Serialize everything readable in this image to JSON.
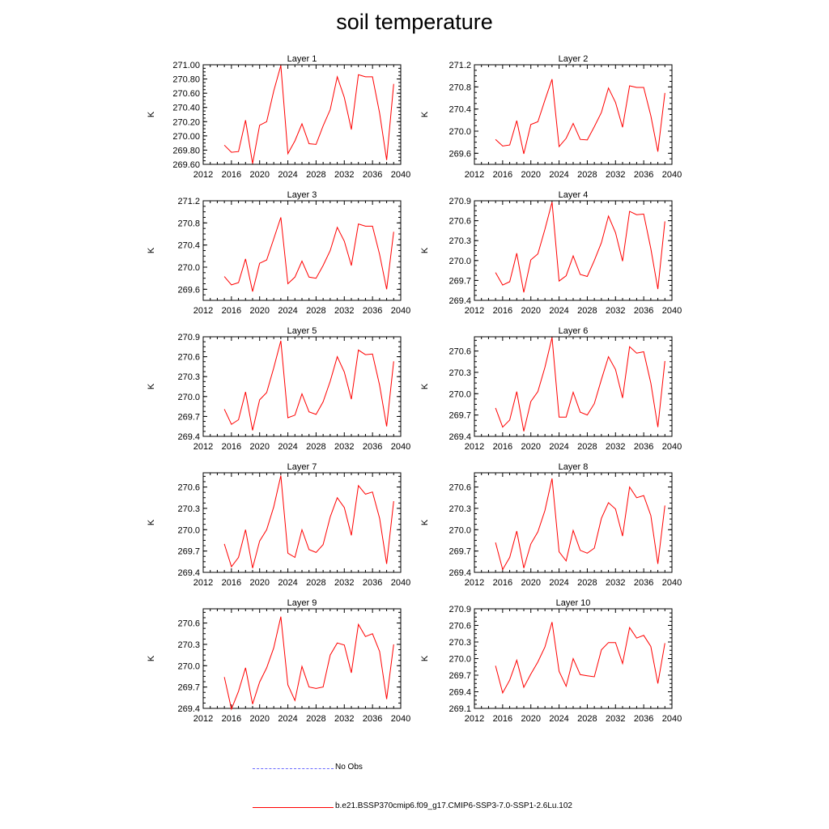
{
  "figure": {
    "title": "soil temperature",
    "legend": [
      {
        "label": "No Obs",
        "color": "#0000ff",
        "style": "dashed"
      },
      {
        "label": "b.e21.BSSP370cmip6.f09_g17.CMIP6-SSP3-7.0-SSP1-2.6Lu.102",
        "color": "#ff0000",
        "style": "solid"
      }
    ]
  },
  "chart_data": [
    {
      "type": "line",
      "title": "Layer 1",
      "ylabel": "K",
      "color": "#ff0000",
      "xlim": [
        2012,
        2040
      ],
      "xticks": [
        2012,
        2016,
        2020,
        2024,
        2028,
        2032,
        2036,
        2040
      ],
      "ylim": [
        269.6,
        271.0
      ],
      "yticks": [
        "269.60",
        "269.80",
        "270.00",
        "270.20",
        "270.40",
        "270.60",
        "270.80",
        "271.00"
      ],
      "x": [
        2015,
        2016,
        2017,
        2018,
        2019,
        2020,
        2021,
        2022,
        2023,
        2024,
        2025,
        2026,
        2027,
        2028,
        2029,
        2030,
        2031,
        2032,
        2033,
        2034,
        2035,
        2036,
        2037,
        2038,
        2039
      ],
      "values": [
        269.87,
        269.77,
        269.78,
        270.22,
        269.61,
        270.15,
        270.2,
        270.63,
        270.99,
        269.75,
        269.93,
        270.17,
        269.89,
        269.88,
        270.14,
        270.37,
        270.83,
        270.54,
        270.09,
        270.86,
        270.83,
        270.83,
        270.32,
        269.66,
        270.73
      ]
    },
    {
      "type": "line",
      "title": "Layer 2",
      "ylabel": "K",
      "color": "#ff0000",
      "xlim": [
        2012,
        2040
      ],
      "xticks": [
        2012,
        2016,
        2020,
        2024,
        2028,
        2032,
        2036,
        2040
      ],
      "ylim": [
        269.4,
        271.2
      ],
      "yticks": [
        "269.6",
        "270.0",
        "270.4",
        "270.8",
        "271.2"
      ],
      "x": [
        2015,
        2016,
        2017,
        2018,
        2019,
        2020,
        2021,
        2022,
        2023,
        2024,
        2025,
        2026,
        2027,
        2028,
        2029,
        2030,
        2031,
        2032,
        2033,
        2034,
        2035,
        2036,
        2037,
        2038,
        2039
      ],
      "values": [
        269.85,
        269.73,
        269.75,
        270.19,
        269.59,
        270.12,
        270.17,
        270.56,
        270.94,
        269.72,
        269.87,
        270.14,
        269.85,
        269.84,
        270.08,
        270.34,
        270.78,
        270.52,
        270.07,
        270.82,
        270.79,
        270.79,
        270.28,
        269.63,
        270.69
      ]
    },
    {
      "type": "line",
      "title": "Layer 3",
      "ylabel": "K",
      "color": "#ff0000",
      "xlim": [
        2012,
        2040
      ],
      "xticks": [
        2012,
        2016,
        2020,
        2024,
        2028,
        2032,
        2036,
        2040
      ],
      "ylim": [
        269.4,
        271.2
      ],
      "yticks": [
        "269.6",
        "270.0",
        "270.4",
        "270.8",
        "271.2"
      ],
      "x": [
        2015,
        2016,
        2017,
        2018,
        2019,
        2020,
        2021,
        2022,
        2023,
        2024,
        2025,
        2026,
        2027,
        2028,
        2029,
        2030,
        2031,
        2032,
        2033,
        2034,
        2035,
        2036,
        2037,
        2038,
        2039
      ],
      "values": [
        269.83,
        269.68,
        269.72,
        270.15,
        269.56,
        270.07,
        270.13,
        270.51,
        270.9,
        269.7,
        269.82,
        270.11,
        269.82,
        269.8,
        270.03,
        270.3,
        270.72,
        270.47,
        270.03,
        270.78,
        270.74,
        270.74,
        270.23,
        269.6,
        270.64
      ]
    },
    {
      "type": "line",
      "title": "Layer 4",
      "ylabel": "K",
      "color": "#ff0000",
      "xlim": [
        2012,
        2040
      ],
      "xticks": [
        2012,
        2016,
        2020,
        2024,
        2028,
        2032,
        2036,
        2040
      ],
      "ylim": [
        269.4,
        270.9
      ],
      "yticks": [
        "269.4",
        "269.7",
        "270.0",
        "270.3",
        "270.6",
        "270.9"
      ],
      "x": [
        2015,
        2016,
        2017,
        2018,
        2019,
        2020,
        2021,
        2022,
        2023,
        2024,
        2025,
        2026,
        2027,
        2028,
        2029,
        2030,
        2031,
        2032,
        2033,
        2034,
        2035,
        2036,
        2037,
        2038,
        2039
      ],
      "values": [
        269.82,
        269.63,
        269.68,
        270.11,
        269.52,
        270.01,
        270.1,
        270.47,
        270.88,
        269.69,
        269.77,
        270.07,
        269.79,
        269.76,
        270.0,
        270.27,
        270.67,
        270.42,
        269.99,
        270.74,
        270.69,
        270.7,
        270.18,
        269.57,
        270.59
      ]
    },
    {
      "type": "line",
      "title": "Layer 5",
      "ylabel": "K",
      "color": "#ff0000",
      "xlim": [
        2012,
        2040
      ],
      "xticks": [
        2012,
        2016,
        2020,
        2024,
        2028,
        2032,
        2036,
        2040
      ],
      "ylim": [
        269.4,
        270.9
      ],
      "yticks": [
        "269.4",
        "269.7",
        "270.0",
        "270.3",
        "270.6",
        "270.9"
      ],
      "x": [
        2015,
        2016,
        2017,
        2018,
        2019,
        2020,
        2021,
        2022,
        2023,
        2024,
        2025,
        2026,
        2027,
        2028,
        2029,
        2030,
        2031,
        2032,
        2033,
        2034,
        2035,
        2036,
        2037,
        2038,
        2039
      ],
      "values": [
        269.81,
        269.58,
        269.65,
        270.07,
        269.49,
        269.95,
        270.06,
        270.43,
        270.84,
        269.68,
        269.72,
        270.04,
        269.77,
        269.73,
        269.92,
        270.23,
        270.6,
        270.37,
        269.96,
        270.7,
        270.63,
        270.64,
        270.17,
        269.55,
        270.53
      ]
    },
    {
      "type": "line",
      "title": "Layer 6",
      "ylabel": "K",
      "color": "#ff0000",
      "xlim": [
        2012,
        2040
      ],
      "xticks": [
        2012,
        2016,
        2020,
        2024,
        2028,
        2032,
        2036,
        2040
      ],
      "ylim": [
        269.4,
        270.8
      ],
      "yticks": [
        "269.4",
        "269.7",
        "270.0",
        "270.3",
        "270.6"
      ],
      "x": [
        2015,
        2016,
        2017,
        2018,
        2019,
        2020,
        2021,
        2022,
        2023,
        2024,
        2025,
        2026,
        2027,
        2028,
        2029,
        2030,
        2031,
        2032,
        2033,
        2034,
        2035,
        2036,
        2037,
        2038,
        2039
      ],
      "values": [
        269.8,
        269.53,
        269.63,
        270.03,
        269.47,
        269.89,
        270.03,
        270.37,
        270.79,
        269.67,
        269.67,
        270.02,
        269.74,
        269.7,
        269.86,
        270.2,
        270.52,
        270.34,
        269.94,
        270.66,
        270.57,
        270.59,
        270.15,
        269.53,
        270.46
      ]
    },
    {
      "type": "line",
      "title": "Layer 7",
      "ylabel": "K",
      "color": "#ff0000",
      "xlim": [
        2012,
        2040
      ],
      "xticks": [
        2012,
        2016,
        2020,
        2024,
        2028,
        2032,
        2036,
        2040
      ],
      "ylim": [
        269.4,
        270.8
      ],
      "yticks": [
        "269.4",
        "269.7",
        "270.0",
        "270.3",
        "270.6"
      ],
      "x": [
        2015,
        2016,
        2017,
        2018,
        2019,
        2020,
        2021,
        2022,
        2023,
        2024,
        2025,
        2026,
        2027,
        2028,
        2029,
        2030,
        2031,
        2032,
        2033,
        2034,
        2035,
        2036,
        2037,
        2038,
        2039
      ],
      "values": [
        269.8,
        269.48,
        269.61,
        270.0,
        269.46,
        269.84,
        270.0,
        270.32,
        270.76,
        269.67,
        269.61,
        270.0,
        269.72,
        269.68,
        269.79,
        270.18,
        270.45,
        270.31,
        269.92,
        270.62,
        270.5,
        270.53,
        270.16,
        269.52,
        270.4
      ]
    },
    {
      "type": "line",
      "title": "Layer 8",
      "ylabel": "K",
      "color": "#ff0000",
      "xlim": [
        2012,
        2040
      ],
      "xticks": [
        2012,
        2016,
        2020,
        2024,
        2028,
        2032,
        2036,
        2040
      ],
      "ylim": [
        269.4,
        270.8
      ],
      "yticks": [
        "269.4",
        "269.7",
        "270.0",
        "270.3",
        "270.6"
      ],
      "x": [
        2015,
        2016,
        2017,
        2018,
        2019,
        2020,
        2021,
        2022,
        2023,
        2024,
        2025,
        2026,
        2027,
        2028,
        2029,
        2030,
        2031,
        2032,
        2033,
        2034,
        2035,
        2036,
        2037,
        2038,
        2039
      ],
      "values": [
        269.82,
        269.44,
        269.61,
        269.98,
        269.46,
        269.8,
        269.97,
        270.27,
        270.72,
        269.69,
        269.56,
        269.99,
        269.71,
        269.67,
        269.74,
        270.16,
        270.38,
        270.29,
        269.91,
        270.6,
        270.45,
        270.48,
        270.2,
        269.52,
        270.34
      ]
    },
    {
      "type": "line",
      "title": "Layer 9",
      "ylabel": "K",
      "color": "#ff0000",
      "xlim": [
        2012,
        2040
      ],
      "xticks": [
        2012,
        2016,
        2020,
        2024,
        2028,
        2032,
        2036,
        2040
      ],
      "ylim": [
        269.4,
        270.8
      ],
      "yticks": [
        "269.4",
        "269.7",
        "270.0",
        "270.3",
        "270.6"
      ],
      "x": [
        2015,
        2016,
        2017,
        2018,
        2019,
        2020,
        2021,
        2022,
        2023,
        2024,
        2025,
        2026,
        2027,
        2028,
        2029,
        2030,
        2031,
        2032,
        2033,
        2034,
        2035,
        2036,
        2037,
        2038,
        2039
      ],
      "values": [
        269.84,
        269.39,
        269.64,
        269.97,
        269.46,
        269.77,
        269.97,
        270.25,
        270.69,
        269.73,
        269.51,
        269.99,
        269.7,
        269.68,
        269.7,
        270.15,
        270.32,
        270.29,
        269.9,
        270.58,
        270.41,
        270.45,
        270.2,
        269.53,
        270.3
      ]
    },
    {
      "type": "line",
      "title": "Layer 10",
      "ylabel": "K",
      "color": "#ff0000",
      "xlim": [
        2012,
        2040
      ],
      "xticks": [
        2012,
        2016,
        2020,
        2024,
        2028,
        2032,
        2036,
        2040
      ],
      "ylim": [
        269.1,
        270.9
      ],
      "yticks": [
        "269.1",
        "269.4",
        "269.7",
        "270.0",
        "270.3",
        "270.6",
        "270.9"
      ],
      "x": [
        2015,
        2016,
        2017,
        2018,
        2019,
        2020,
        2021,
        2022,
        2023,
        2024,
        2025,
        2026,
        2027,
        2028,
        2029,
        2030,
        2031,
        2032,
        2033,
        2034,
        2035,
        2036,
        2037,
        2038,
        2039
      ],
      "values": [
        269.87,
        269.38,
        269.61,
        269.97,
        269.48,
        269.72,
        269.94,
        270.21,
        270.66,
        269.77,
        269.5,
        270.0,
        269.71,
        269.69,
        269.67,
        270.16,
        270.29,
        270.29,
        269.91,
        270.56,
        270.37,
        270.42,
        270.22,
        269.55,
        270.28
      ]
    }
  ]
}
